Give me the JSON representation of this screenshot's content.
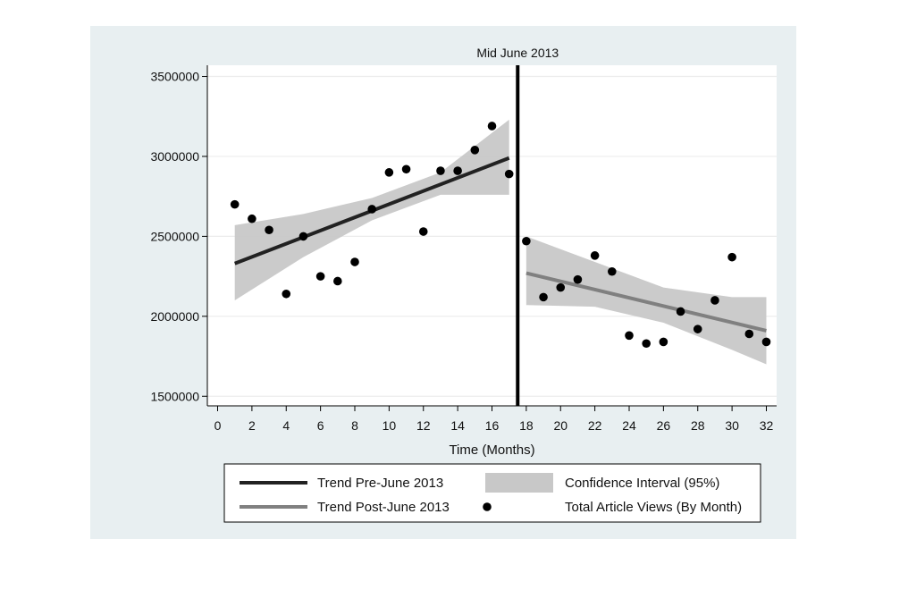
{
  "chart_data": {
    "type": "scatter",
    "title": "",
    "xlabel": "Time (Months)",
    "ylabel": "",
    "xlim": [
      -0.6,
      32.6
    ],
    "ylim": [
      1440000,
      3570000
    ],
    "x_ticks": [
      0,
      2,
      4,
      6,
      8,
      10,
      12,
      14,
      16,
      18,
      20,
      22,
      24,
      26,
      28,
      30,
      32
    ],
    "y_ticks": [
      1500000,
      2000000,
      2500000,
      3000000,
      3500000
    ],
    "grid": "horizontal",
    "event_line": {
      "x": 17.5,
      "label": "Mid June 2013"
    },
    "observations": {
      "name": "Total Article Views (By Month)",
      "x": [
        1,
        2,
        3,
        4,
        5,
        6,
        7,
        8,
        9,
        10,
        11,
        12,
        13,
        14,
        15,
        16,
        17,
        18,
        19,
        20,
        21,
        22,
        23,
        24,
        25,
        26,
        27,
        28,
        29,
        30,
        31,
        32
      ],
      "y": [
        2700000,
        2610000,
        2540000,
        2140000,
        2500000,
        2250000,
        2220000,
        2340000,
        2670000,
        2900000,
        2920000,
        2530000,
        2910000,
        2910000,
        3040000,
        3190000,
        2890000,
        2470000,
        2120000,
        2180000,
        2230000,
        2380000,
        2280000,
        1880000,
        1830000,
        1840000,
        2030000,
        1920000,
        2100000,
        2370000,
        1890000,
        1840000
      ],
      "color": "#000000"
    },
    "trend_pre": {
      "name": "Trend Pre-June 2013",
      "x": [
        1,
        17
      ],
      "y": [
        2330000,
        2990000
      ],
      "color": "#222222"
    },
    "trend_post": {
      "name": "Trend Post-June 2013",
      "x": [
        18,
        32
      ],
      "y": [
        2270000,
        1910000
      ],
      "color": "#808080"
    },
    "confidence_bands": [
      {
        "name": "Confidence Interval (95%)",
        "x": [
          1,
          5,
          9,
          13,
          17
        ],
        "lower": [
          2100000,
          2370000,
          2600000,
          2760000,
          2760000
        ],
        "upper": [
          2570000,
          2640000,
          2740000,
          2900000,
          3230000
        ]
      },
      {
        "name": "Confidence Interval (95%)",
        "x": [
          18,
          22,
          26,
          30,
          32
        ],
        "lower": [
          2070000,
          2060000,
          1960000,
          1790000,
          1700000
        ],
        "upper": [
          2500000,
          2340000,
          2180000,
          2120000,
          2120000
        ]
      }
    ],
    "band_color": "#c8c8c8",
    "legend_position": "bottom",
    "legend": [
      {
        "label": "Trend Pre-June 2013",
        "kind": "line",
        "color": "#222222"
      },
      {
        "label": "Confidence Interval (95%)",
        "kind": "area",
        "color": "#c8c8c8"
      },
      {
        "label": "Trend Post-June 2013",
        "kind": "line",
        "color": "#808080"
      },
      {
        "label": "Total Article Views (By Month)",
        "kind": "dot",
        "color": "#000000"
      }
    ],
    "outer_background": "#e8eff1",
    "plot_background": "#ffffff"
  }
}
